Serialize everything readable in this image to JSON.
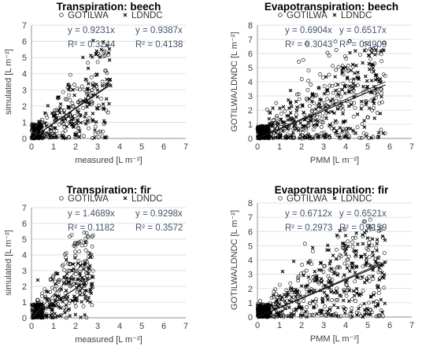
{
  "chart_data": [
    {
      "type": "scatter",
      "title": "Transpiration: beech",
      "xlabel": "measured [L m⁻²]",
      "ylabel": "simulated [L m⁻²]",
      "xlim": [
        0,
        7
      ],
      "ylim": [
        0,
        7
      ],
      "xticks": [
        "0",
        "1",
        "2",
        "3",
        "4",
        "5",
        "6",
        "7"
      ],
      "yticks": [
        "0",
        "1",
        "2",
        "3",
        "4",
        "5",
        "6",
        "7"
      ],
      "legend": [
        "GOTILWA",
        "LDNDC"
      ],
      "series": [
        {
          "name": "GOTILWA",
          "marker": "circle",
          "slope": 0.9231,
          "x_range": [
            0.0,
            3.5
          ],
          "fit_label": "y = 0.9231x",
          "r2_label": "R² = 0.3244",
          "count": 190,
          "y_max": 5.5
        },
        {
          "name": "LDNDC",
          "marker": "x",
          "slope": 0.9387,
          "x_range": [
            0.0,
            3.6
          ],
          "fit_label": "y = 0.9387x",
          "r2_label": "R² = 0.4138",
          "count": 190,
          "y_max": 6.1
        }
      ]
    },
    {
      "type": "scatter",
      "title": "Evapotranspiration: beech",
      "xlabel": "PMM [L m⁻²]",
      "ylabel": "GOTILWA/LDNDC [L m⁻²]",
      "xlim": [
        0,
        7
      ],
      "ylim": [
        0,
        8
      ],
      "xticks": [
        "0",
        "1",
        "2",
        "3",
        "4",
        "5",
        "6",
        "7"
      ],
      "yticks": [
        "0",
        "1",
        "2",
        "3",
        "4",
        "5",
        "6",
        "7",
        "8"
      ],
      "legend": [
        "GOTILWA",
        "LDNDC"
      ],
      "series": [
        {
          "name": "GOTILWA",
          "marker": "circle",
          "slope": 0.6904,
          "x_range": [
            0.0,
            5.8
          ],
          "fit_label": "y = 0.6904x",
          "r2_label": "R² = 0.3043",
          "count": 330,
          "y_max": 7.0
        },
        {
          "name": "LDNDC",
          "marker": "x",
          "slope": 0.6517,
          "x_range": [
            0.0,
            5.8
          ],
          "fit_label": "y = 0.6517x",
          "r2_label": "R² = 0.4909",
          "count": 330,
          "y_max": 6.3
        }
      ]
    },
    {
      "type": "scatter",
      "title": "Transpiration: fir",
      "xlabel": "measured [L m⁻²]",
      "ylabel": "simulated [L m⁻²]",
      "xlim": [
        0,
        7
      ],
      "ylim": [
        0,
        7
      ],
      "xticks": [
        "0",
        "1",
        "2",
        "3",
        "4",
        "5",
        "6",
        "7"
      ],
      "yticks": [
        "0",
        "1",
        "2",
        "3",
        "4",
        "5",
        "6",
        "7"
      ],
      "legend": [
        "GOTILWA",
        "LDNDC"
      ],
      "series": [
        {
          "name": "GOTILWA",
          "marker": "circle",
          "slope": 1.4689,
          "x_range": [
            0.0,
            2.8
          ],
          "fit_label": "y = 1.4689x",
          "r2_label": "R² = 0.1182",
          "count": 190,
          "y_max": 5.6
        },
        {
          "name": "LDNDC",
          "marker": "x",
          "slope": 0.9298,
          "x_range": [
            0.0,
            2.8
          ],
          "fit_label": "y = 0.9298x",
          "r2_label": "R² = 0.3572",
          "count": 190,
          "y_max": 5.9
        }
      ]
    },
    {
      "type": "scatter",
      "title": "Evapotranspiration: fir",
      "xlabel": "PMM [L m⁻²]",
      "ylabel": "GOTILWA/LDNDC [L m⁻²]",
      "xlim": [
        0,
        7
      ],
      "ylim": [
        0,
        8
      ],
      "xticks": [
        "0",
        "1",
        "2",
        "3",
        "4",
        "5",
        "6",
        "7"
      ],
      "yticks": [
        "0",
        "1",
        "2",
        "3",
        "4",
        "5",
        "6",
        "7",
        "8"
      ],
      "legend": [
        "GOTILWA",
        "LDNDC"
      ],
      "series": [
        {
          "name": "GOTILWA",
          "marker": "circle",
          "slope": 0.6712,
          "x_range": [
            0.0,
            5.8
          ],
          "fit_label": "y = 0.6712x",
          "r2_label": "R² = 0.2973",
          "count": 330,
          "y_max": 6.9
        },
        {
          "name": "LDNDC",
          "marker": "x",
          "slope": 0.6521,
          "x_range": [
            0.0,
            5.8
          ],
          "fit_label": "y = 0.6521x",
          "r2_label": "R² = 0.4159",
          "count": 330,
          "y_max": 6.3
        }
      ]
    }
  ],
  "colors": {
    "axis": "#8c8c8c",
    "grid": "#d9d9d9",
    "marker": "#000000",
    "fit_text": "#44546A"
  }
}
